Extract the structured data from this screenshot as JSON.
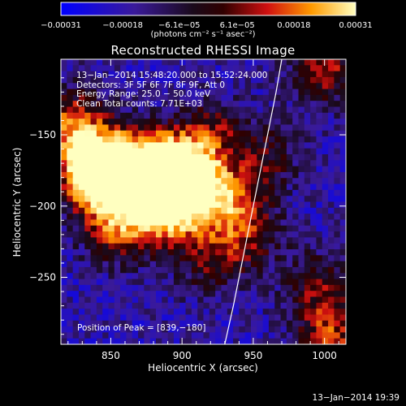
{
  "chart_data": {
    "type": "heatmap",
    "title": "Reconstructed RHESSI Image",
    "xlabel": "Heliocentric X (arcsec)",
    "ylabel": "Heliocentric Y (arcsec)",
    "xlim": [
      815,
      1015
    ],
    "ylim": [
      -297,
      -97
    ],
    "x_ticks": [
      850,
      900,
      950,
      1000
    ],
    "y_ticks": [
      -250,
      -200,
      -150
    ],
    "x_tick_labels": [
      "850",
      "900",
      "950",
      "1000"
    ],
    "y_tick_labels": [
      "−250",
      "−200",
      "−150"
    ],
    "colorbar": {
      "range": [
        -0.00031,
        0.00031
      ],
      "tick_labels": [
        "−0.00031",
        "−0.00018",
        "−6.1e−05",
        "6.1e−05",
        "0.00018",
        "0.00031"
      ],
      "tick_values": [
        -0.00031,
        -0.00018,
        -6.1e-05,
        6.1e-05,
        0.00018,
        0.00031
      ],
      "unit_text": "(photons cm⁻² s⁻¹ asec⁻²)"
    },
    "info_lines": [
      "13−Jan−2014 15:48:20.000 to 15:52:24.000",
      "Detectors: 3F 5F 6F 7F 8F 9F, Att 0",
      "Energy Range: 25.0 − 50.0 keV",
      "Clean     Total counts: 7.71E+03"
    ],
    "peak_label": "Position of Peak = [839,−180]",
    "peak_position": [
      839,
      -180
    ],
    "limb_curve": {
      "description": "solar limb line",
      "x": [
        930,
        936,
        942,
        948,
        954,
        960,
        966,
        970
      ],
      "y": [
        -297,
        -270,
        -240,
        -210,
        -180,
        -150,
        -120,
        -97
      ]
    },
    "emission_blobs": [
      {
        "x": 843,
        "y": -183,
        "strength": 1.0
      },
      {
        "x": 835,
        "y": -165,
        "strength": 0.75
      },
      {
        "x": 868,
        "y": -170,
        "strength": 0.85
      },
      {
        "x": 893,
        "y": -172,
        "strength": 0.8
      },
      {
        "x": 908,
        "y": -183,
        "strength": 0.7
      },
      {
        "x": 880,
        "y": -200,
        "strength": 0.65
      },
      {
        "x": 900,
        "y": -205,
        "strength": 0.55
      },
      {
        "x": 855,
        "y": -215,
        "strength": 0.6
      },
      {
        "x": 822,
        "y": -140,
        "strength": 0.55
      },
      {
        "x": 920,
        "y": -150,
        "strength": 0.45
      },
      {
        "x": 935,
        "y": -195,
        "strength": 0.5
      },
      {
        "x": 945,
        "y": -220,
        "strength": 0.45
      },
      {
        "x": 920,
        "y": -240,
        "strength": 0.35
      },
      {
        "x": 960,
        "y": -165,
        "strength": 0.35
      },
      {
        "x": 1000,
        "y": -105,
        "strength": 0.55
      },
      {
        "x": 1005,
        "y": -290,
        "strength": 0.6
      },
      {
        "x": 995,
        "y": -255,
        "strength": 0.4
      }
    ]
  },
  "footer_date": "13−Jan−2014 19:39"
}
